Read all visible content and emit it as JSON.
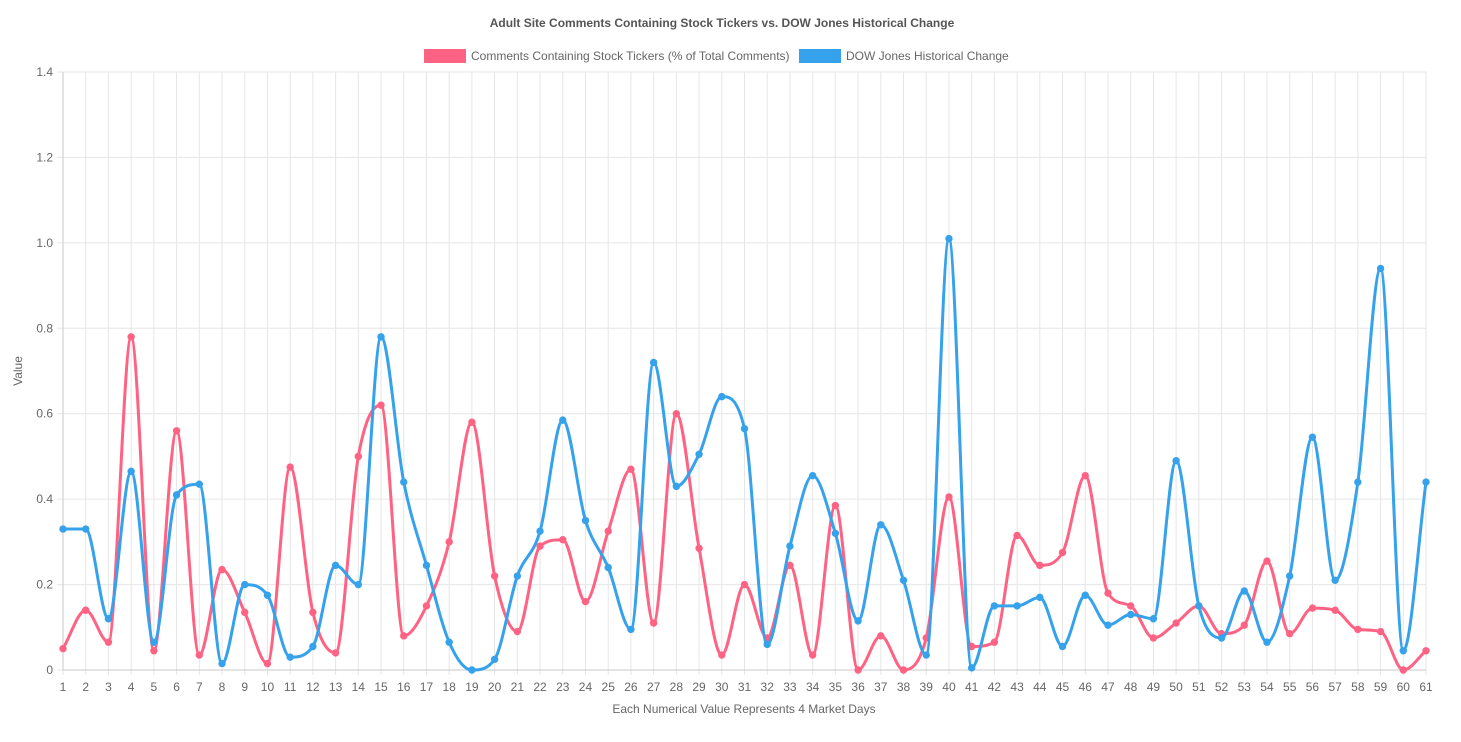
{
  "chart_data": {
    "type": "line",
    "title": "Adult Site Comments Containing Stock Tickers vs. DOW Jones Historical Change",
    "xlabel": "Each Numerical Value Represents 4 Market Days",
    "ylabel": "Value",
    "ylim": [
      0,
      1.4
    ],
    "yticks": [
      "0",
      "0.2",
      "0.4",
      "0.6",
      "0.8",
      "1.0",
      "1.2",
      "1.4"
    ],
    "ytick_values": [
      0,
      0.2,
      0.4,
      0.6,
      0.8,
      1.0,
      1.2,
      1.4
    ],
    "grid": true,
    "legend_position": "top",
    "categories": [
      "1",
      "2",
      "3",
      "4",
      "5",
      "6",
      "7",
      "8",
      "9",
      "10",
      "11",
      "12",
      "13",
      "14",
      "15",
      "16",
      "17",
      "18",
      "19",
      "20",
      "21",
      "22",
      "23",
      "24",
      "25",
      "26",
      "27",
      "28",
      "29",
      "30",
      "31",
      "32",
      "33",
      "34",
      "35",
      "36",
      "37",
      "38",
      "39",
      "40",
      "41",
      "42",
      "43",
      "44",
      "45",
      "46",
      "47",
      "48",
      "49",
      "50",
      "51",
      "52",
      "53",
      "54",
      "55",
      "56",
      "57",
      "58",
      "59",
      "60",
      "61"
    ],
    "series": [
      {
        "name": "Comments Containing Stock Tickers (% of Total Comments)",
        "color": "#ff6384",
        "values": [
          0.05,
          0.14,
          0.065,
          0.78,
          0.045,
          0.56,
          0.035,
          0.235,
          0.135,
          0.015,
          0.475,
          0.135,
          0.04,
          0.5,
          0.62,
          0.08,
          0.15,
          0.3,
          0.58,
          0.22,
          0.09,
          0.29,
          0.305,
          0.16,
          0.325,
          0.47,
          0.11,
          0.6,
          0.285,
          0.035,
          0.2,
          0.075,
          0.245,
          0.035,
          0.385,
          0.0,
          0.08,
          0.0,
          0.075,
          0.405,
          0.055,
          0.065,
          0.315,
          0.245,
          0.275,
          0.455,
          0.18,
          0.15,
          0.075,
          0.11,
          0.15,
          0.085,
          0.105,
          0.255,
          0.085,
          0.145,
          0.14,
          0.095,
          0.09,
          0.0,
          0.045
        ]
      },
      {
        "name": "DOW Jones Historical Change",
        "color": "#36a2eb",
        "values": [
          0.33,
          0.33,
          0.12,
          0.465,
          0.065,
          0.41,
          0.435,
          0.015,
          0.2,
          0.175,
          0.03,
          0.055,
          0.245,
          0.2,
          0.78,
          0.44,
          0.245,
          0.065,
          0.0,
          0.025,
          0.22,
          0.325,
          0.585,
          0.35,
          0.24,
          0.095,
          0.72,
          0.43,
          0.505,
          0.64,
          0.565,
          0.06,
          0.29,
          0.455,
          0.32,
          0.115,
          0.34,
          0.21,
          0.035,
          1.01,
          0.005,
          0.15,
          0.15,
          0.17,
          0.055,
          0.175,
          0.105,
          0.13,
          0.12,
          0.49,
          0.15,
          0.075,
          0.185,
          0.065,
          0.22,
          0.545,
          0.21,
          0.44,
          0.94,
          0.045,
          0.44
        ]
      }
    ]
  }
}
